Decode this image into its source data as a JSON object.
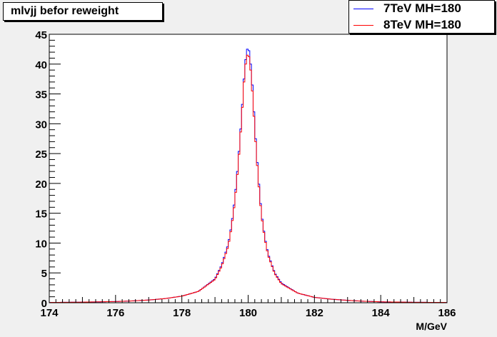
{
  "chart_data": {
    "type": "line",
    "title": "mlvjj befor reweight",
    "xlabel": "M/GeV",
    "ylabel": "",
    "xlim": [
      174,
      186
    ],
    "ylim": [
      0,
      45
    ],
    "x_ticks": [
      "174",
      "176",
      "178",
      "180",
      "182",
      "184",
      "186"
    ],
    "y_ticks": [
      "0",
      "5",
      "10",
      "15",
      "20",
      "25",
      "30",
      "35",
      "40",
      "45"
    ],
    "grid": false,
    "legend_position": "top-right",
    "peak_x": 180,
    "series": [
      {
        "name": "7TeV MH=180",
        "color": "#0000ff",
        "x": [
          174.0,
          175.0,
          176.0,
          176.5,
          177.0,
          177.5,
          178.0,
          178.5,
          179.0,
          179.2,
          179.4,
          179.5,
          179.6,
          179.7,
          179.8,
          179.85,
          179.9,
          179.95,
          180.0,
          180.05,
          180.1,
          180.15,
          180.2,
          180.3,
          180.4,
          180.5,
          180.6,
          180.8,
          181.0,
          181.5,
          182.0,
          182.5,
          183.0,
          183.5,
          184.0,
          185.0,
          186.0
        ],
        "y": [
          0.05,
          0.1,
          0.2,
          0.3,
          0.45,
          0.7,
          1.1,
          1.9,
          4.0,
          6.3,
          9.8,
          13.0,
          17.5,
          23.5,
          31.0,
          35.5,
          39.5,
          42.0,
          43.0,
          41.5,
          38.5,
          34.5,
          29.5,
          21.5,
          15.0,
          11.0,
          8.2,
          5.0,
          3.3,
          1.6,
          0.9,
          0.6,
          0.4,
          0.25,
          0.15,
          0.08,
          0.05
        ]
      },
      {
        "name": "8TeV MH=180",
        "color": "#ff0000",
        "x": [
          174.0,
          175.0,
          176.0,
          176.5,
          177.0,
          177.5,
          178.0,
          178.5,
          179.0,
          179.2,
          179.4,
          179.5,
          179.6,
          179.7,
          179.8,
          179.85,
          179.9,
          179.95,
          180.0,
          180.05,
          180.1,
          180.15,
          180.2,
          180.3,
          180.4,
          180.5,
          180.6,
          180.8,
          181.0,
          181.5,
          182.0,
          182.5,
          183.0,
          183.5,
          184.0,
          185.0,
          186.0
        ],
        "y": [
          0.05,
          0.1,
          0.2,
          0.3,
          0.45,
          0.7,
          1.1,
          1.9,
          3.9,
          6.1,
          9.5,
          12.7,
          17.0,
          23.0,
          30.5,
          35.0,
          39.0,
          41.0,
          42.0,
          40.5,
          37.5,
          33.5,
          29.0,
          21.0,
          14.7,
          10.8,
          8.0,
          4.9,
          3.2,
          1.6,
          0.9,
          0.6,
          0.4,
          0.25,
          0.15,
          0.08,
          0.05
        ]
      }
    ]
  }
}
